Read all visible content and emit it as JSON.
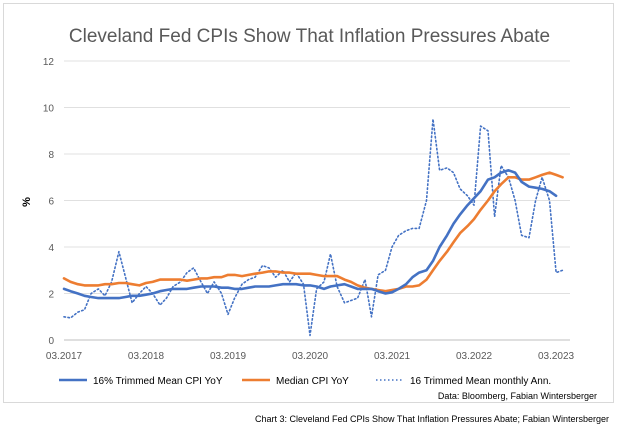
{
  "chart_data": {
    "type": "line",
    "title": "Cleveland Fed CPIs Show That Inflation Pressures Abate",
    "ylabel": "%",
    "ylim": [
      0,
      12
    ],
    "yticks": [
      0,
      2,
      4,
      6,
      8,
      10,
      12
    ],
    "xlim": [
      2017.0,
      2023.17
    ],
    "xticks": [
      {
        "value": 2017.0,
        "label": "03.2017"
      },
      {
        "value": 2018.0,
        "label": "03.2018"
      },
      {
        "value": 2019.0,
        "label": "03.2019"
      },
      {
        "value": 2020.0,
        "label": "03.2020"
      },
      {
        "value": 2021.0,
        "label": "03.2021"
      },
      {
        "value": 2022.0,
        "label": "03.2022"
      },
      {
        "value": 2023.0,
        "label": "03.2023"
      }
    ],
    "grid": true,
    "legend": "bottom",
    "series": [
      {
        "name": "16% Trimmed Mean CPI YoY",
        "color": "#4472c4",
        "style": "solid",
        "x": [
          2017.0,
          2017.08,
          2017.17,
          2017.25,
          2017.33,
          2017.42,
          2017.5,
          2017.58,
          2017.67,
          2017.75,
          2017.83,
          2017.92,
          2018.0,
          2018.08,
          2018.17,
          2018.25,
          2018.33,
          2018.42,
          2018.5,
          2018.58,
          2018.67,
          2018.75,
          2018.83,
          2018.92,
          2019.0,
          2019.08,
          2019.17,
          2019.25,
          2019.33,
          2019.42,
          2019.5,
          2019.58,
          2019.67,
          2019.75,
          2019.83,
          2019.92,
          2020.0,
          2020.08,
          2020.17,
          2020.25,
          2020.33,
          2020.42,
          2020.5,
          2020.58,
          2020.67,
          2020.75,
          2020.83,
          2020.92,
          2021.0,
          2021.08,
          2021.17,
          2021.25,
          2021.33,
          2021.42,
          2021.5,
          2021.58,
          2021.67,
          2021.75,
          2021.83,
          2021.92,
          2022.0,
          2022.08,
          2022.17,
          2022.25,
          2022.33,
          2022.42,
          2022.5,
          2022.58,
          2022.67,
          2022.75,
          2022.83,
          2022.92,
          2023.0
        ],
        "values": [
          2.2,
          2.1,
          2.0,
          1.9,
          1.85,
          1.8,
          1.8,
          1.8,
          1.8,
          1.85,
          1.9,
          1.9,
          1.95,
          2.0,
          2.1,
          2.15,
          2.2,
          2.2,
          2.2,
          2.25,
          2.3,
          2.3,
          2.3,
          2.25,
          2.25,
          2.2,
          2.2,
          2.25,
          2.3,
          2.3,
          2.3,
          2.35,
          2.4,
          2.4,
          2.4,
          2.35,
          2.35,
          2.3,
          2.2,
          2.3,
          2.35,
          2.4,
          2.3,
          2.2,
          2.2,
          2.2,
          2.1,
          2.0,
          2.05,
          2.2,
          2.4,
          2.7,
          2.9,
          3.0,
          3.4,
          4.0,
          4.5,
          5.0,
          5.4,
          5.8,
          6.1,
          6.4,
          6.9,
          7.0,
          7.2,
          7.3,
          7.2,
          6.8,
          6.6,
          6.55,
          6.5,
          6.4,
          6.2
        ]
      },
      {
        "name": "Median CPI YoY",
        "color": "#ed7d31",
        "style": "solid",
        "x": [
          2017.0,
          2017.08,
          2017.17,
          2017.25,
          2017.33,
          2017.42,
          2017.5,
          2017.58,
          2017.67,
          2017.75,
          2017.83,
          2017.92,
          2018.0,
          2018.08,
          2018.17,
          2018.25,
          2018.33,
          2018.42,
          2018.5,
          2018.58,
          2018.67,
          2018.75,
          2018.83,
          2018.92,
          2019.0,
          2019.08,
          2019.17,
          2019.25,
          2019.33,
          2019.42,
          2019.5,
          2019.58,
          2019.67,
          2019.75,
          2019.83,
          2019.92,
          2020.0,
          2020.08,
          2020.17,
          2020.25,
          2020.33,
          2020.42,
          2020.5,
          2020.58,
          2020.67,
          2020.75,
          2020.83,
          2020.92,
          2021.0,
          2021.08,
          2021.17,
          2021.25,
          2021.33,
          2021.42,
          2021.5,
          2021.58,
          2021.67,
          2021.75,
          2021.83,
          2021.92,
          2022.0,
          2022.08,
          2022.17,
          2022.25,
          2022.33,
          2022.42,
          2022.5,
          2022.58,
          2022.67,
          2022.75,
          2022.83,
          2022.92,
          2023.0,
          2023.08
        ],
        "values": [
          2.65,
          2.5,
          2.4,
          2.35,
          2.35,
          2.35,
          2.4,
          2.4,
          2.45,
          2.45,
          2.4,
          2.35,
          2.45,
          2.5,
          2.6,
          2.6,
          2.6,
          2.6,
          2.55,
          2.6,
          2.65,
          2.65,
          2.7,
          2.7,
          2.8,
          2.8,
          2.75,
          2.8,
          2.85,
          2.9,
          2.95,
          2.95,
          2.9,
          2.9,
          2.85,
          2.85,
          2.85,
          2.8,
          2.75,
          2.75,
          2.75,
          2.6,
          2.5,
          2.35,
          2.25,
          2.2,
          2.15,
          2.1,
          2.15,
          2.2,
          2.3,
          2.3,
          2.35,
          2.6,
          3.0,
          3.4,
          3.8,
          4.2,
          4.6,
          4.9,
          5.2,
          5.6,
          6.0,
          6.4,
          6.7,
          7.0,
          7.0,
          6.9,
          6.9,
          7.0,
          7.1,
          7.2,
          7.1,
          7.0
        ]
      },
      {
        "name": "16 Trimmed Mean monthly Ann.",
        "color": "#4472c4",
        "style": "dotted",
        "x": [
          2017.0,
          2017.08,
          2017.17,
          2017.25,
          2017.33,
          2017.42,
          2017.5,
          2017.58,
          2017.67,
          2017.75,
          2017.83,
          2017.92,
          2018.0,
          2018.08,
          2018.17,
          2018.25,
          2018.33,
          2018.42,
          2018.5,
          2018.58,
          2018.67,
          2018.75,
          2018.83,
          2018.92,
          2019.0,
          2019.08,
          2019.17,
          2019.25,
          2019.33,
          2019.42,
          2019.5,
          2019.58,
          2019.67,
          2019.75,
          2019.83,
          2019.92,
          2020.0,
          2020.08,
          2020.17,
          2020.25,
          2020.33,
          2020.42,
          2020.5,
          2020.58,
          2020.67,
          2020.75,
          2020.83,
          2020.92,
          2021.0,
          2021.08,
          2021.17,
          2021.25,
          2021.33,
          2021.42,
          2021.5,
          2021.58,
          2021.67,
          2021.75,
          2021.83,
          2021.92,
          2022.0,
          2022.08,
          2022.17,
          2022.25,
          2022.33,
          2022.42,
          2022.5,
          2022.58,
          2022.67,
          2022.75,
          2022.83,
          2022.92,
          2023.0,
          2023.08
        ],
        "values": [
          1.0,
          0.95,
          1.2,
          1.3,
          2.0,
          2.2,
          1.9,
          2.5,
          3.8,
          2.7,
          1.6,
          2.0,
          2.3,
          2.0,
          1.5,
          1.8,
          2.3,
          2.5,
          2.9,
          3.1,
          2.5,
          2.0,
          2.5,
          2.0,
          1.1,
          1.8,
          2.4,
          2.6,
          2.7,
          3.2,
          3.1,
          2.7,
          3.0,
          2.5,
          2.9,
          2.4,
          0.2,
          2.2,
          2.5,
          3.7,
          2.3,
          1.6,
          1.7,
          1.8,
          2.6,
          1.0,
          2.8,
          3.0,
          4.0,
          4.5,
          4.7,
          4.8,
          4.8,
          6.0,
          9.5,
          7.3,
          7.4,
          7.2,
          6.5,
          6.2,
          5.8,
          9.2,
          9.0,
          5.3,
          7.5,
          7.0,
          6.0,
          4.5,
          4.4,
          6.0,
          7.0,
          6.0,
          2.9,
          3.0
        ]
      }
    ]
  },
  "source_note": "Data: Bloomberg, Fabian Wintersberger",
  "caption": "Chart 3: Cleveland Fed CPIs Show That Inflation Pressures Abate; Fabian Wintersberger"
}
